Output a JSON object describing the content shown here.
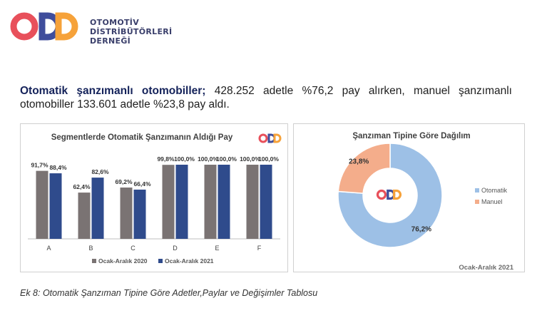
{
  "header": {
    "org_line1": "OTOMOTİV",
    "org_line2": "DİSTRİBÜTÖRLERİ",
    "org_line3": "DERNEĞİ"
  },
  "intro": {
    "bold": "Otomatik şanzımanlı otomobiller;",
    "rest": " 428.252 adetle %76,2 pay alırken, manuel şanzımanlı otomobiller 133.601 adetle %23,8 pay aldı."
  },
  "caption": "Ek 8: Otomatik Şanzıman Tipine Göre Adetler,Paylar ve Değişimler Tablosu",
  "colors": {
    "series_2020": "#7a7373",
    "series_2021": "#2f4b8c",
    "otomatik": "#9dc0e6",
    "manuel": "#f4ad8b",
    "logo_red": "#e8505b",
    "logo_blue": "#3f4d9c",
    "logo_orange": "#f6a23a"
  },
  "chart_data": [
    {
      "type": "bar",
      "title": "Segmentlerde Otomatik Şanzımanın Aldığı Pay",
      "categories": [
        "A",
        "B",
        "C",
        "D",
        "E",
        "F"
      ],
      "series": [
        {
          "name": "Ocak-Aralık 2020",
          "values": [
            91.7,
            62.4,
            69.2,
            99.8,
            100.0,
            100.0
          ],
          "labels": [
            "91,7%",
            "62,4%",
            "69,2%",
            "99,8%",
            "100,0%",
            "100,0%"
          ]
        },
        {
          "name": "Ocak-Aralık 2021",
          "values": [
            88.4,
            82.6,
            66.4,
            100.0,
            100.0,
            100.0
          ],
          "labels": [
            "88,4%",
            "82,6%",
            "66,4%",
            "100,0%",
            "100,0%",
            "100,0%"
          ]
        }
      ],
      "ylim": [
        0,
        100
      ],
      "grid": false,
      "legend": "bottom"
    },
    {
      "type": "pie",
      "title": "Şanzıman Tipine Göre Dağılım",
      "slices": [
        {
          "name": "Otomatik",
          "value": 76.2,
          "label": "76,2%"
        },
        {
          "name": "Manuel",
          "value": 23.8,
          "label": "23,8%"
        }
      ],
      "donut": true,
      "legend": "right",
      "footnote": "Ocak-Aralık 2021"
    }
  ]
}
